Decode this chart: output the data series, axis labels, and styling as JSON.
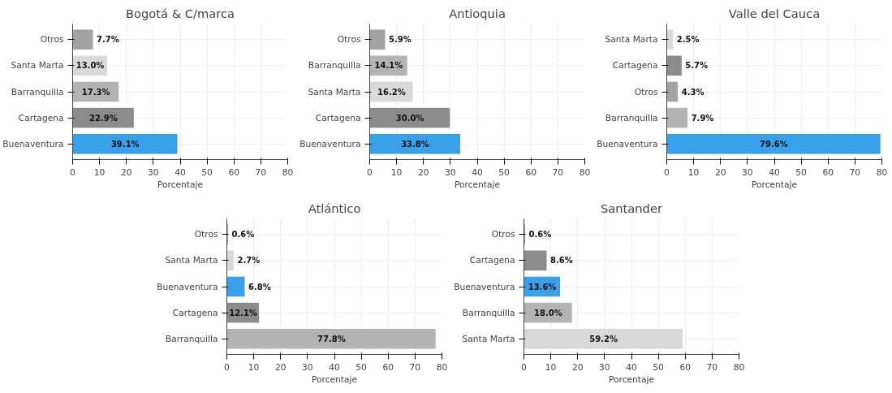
{
  "chart_data": [
    {
      "type": "bar",
      "orientation": "horizontal",
      "title": "Bogotá & C/marca",
      "xlabel": "Porcentaje",
      "categories": [
        "Otros",
        "Santa Marta",
        "Barranquilla",
        "Cartagena",
        "Buenaventura"
      ],
      "values": [
        7.7,
        13.0,
        17.3,
        22.9,
        39.1
      ],
      "value_labels": [
        "7.7%",
        "13.0%",
        "17.3%",
        "22.9%",
        "39.1%"
      ],
      "colors": [
        "#a3a3a3",
        "#d9d9d9",
        "#b3b3b3",
        "#8c8c8c",
        "#3aa0ea"
      ],
      "xlim": [
        0,
        80
      ],
      "xticks": [
        0,
        10,
        20,
        30,
        40,
        50,
        60,
        70,
        80
      ],
      "grid": true
    },
    {
      "type": "bar",
      "orientation": "horizontal",
      "title": "Antioquia",
      "xlabel": "Porcentaje",
      "categories": [
        "Otros",
        "Barranquilla",
        "Santa Marta",
        "Cartagena",
        "Buenaventura"
      ],
      "values": [
        5.9,
        14.1,
        16.2,
        30.0,
        33.8
      ],
      "value_labels": [
        "5.9%",
        "14.1%",
        "16.2%",
        "30.0%",
        "33.8%"
      ],
      "colors": [
        "#a3a3a3",
        "#b3b3b3",
        "#d9d9d9",
        "#8c8c8c",
        "#3aa0ea"
      ],
      "xlim": [
        0,
        80
      ],
      "xticks": [
        0,
        10,
        20,
        30,
        40,
        50,
        60,
        70,
        80
      ],
      "grid": true
    },
    {
      "type": "bar",
      "orientation": "horizontal",
      "title": "Valle del Cauca",
      "xlabel": "Porcentaje",
      "categories": [
        "Santa Marta",
        "Cartagena",
        "Otros",
        "Barranquilla",
        "Buenaventura"
      ],
      "values": [
        2.5,
        5.7,
        4.3,
        7.9,
        79.6
      ],
      "value_labels": [
        "2.5%",
        "5.7%",
        "4.3%",
        "7.9%",
        "79.6%"
      ],
      "colors": [
        "#d9d9d9",
        "#8c8c8c",
        "#a3a3a3",
        "#b3b3b3",
        "#3aa0ea"
      ],
      "xlim": [
        0,
        80
      ],
      "xticks": [
        0,
        10,
        20,
        30,
        40,
        50,
        60,
        70,
        80
      ],
      "grid": true
    },
    {
      "type": "bar",
      "orientation": "horizontal",
      "title": "Atlántico",
      "xlabel": "Porcentaje",
      "categories": [
        "Otros",
        "Santa Marta",
        "Buenaventura",
        "Cartagena",
        "Barranquilla"
      ],
      "values": [
        0.6,
        2.7,
        6.8,
        12.1,
        77.8
      ],
      "value_labels": [
        "0.6%",
        "2.7%",
        "6.8%",
        "12.1%",
        "77.8%"
      ],
      "colors": [
        "#a3a3a3",
        "#d9d9d9",
        "#3aa0ea",
        "#8c8c8c",
        "#b3b3b3"
      ],
      "xlim": [
        0,
        80
      ],
      "xticks": [
        0,
        10,
        20,
        30,
        40,
        50,
        60,
        70,
        80
      ],
      "grid": true
    },
    {
      "type": "bar",
      "orientation": "horizontal",
      "title": "Santander",
      "xlabel": "Porcentaje",
      "categories": [
        "Otros",
        "Cartagena",
        "Buenaventura",
        "Barranquilla",
        "Santa Marta"
      ],
      "values": [
        0.6,
        8.6,
        13.6,
        18.0,
        59.2
      ],
      "value_labels": [
        "0.6%",
        "8.6%",
        "13.6%",
        "18.0%",
        "59.2%"
      ],
      "colors": [
        "#a3a3a3",
        "#8c8c8c",
        "#3aa0ea",
        "#b3b3b3",
        "#d9d9d9"
      ],
      "xlim": [
        0,
        80
      ],
      "xticks": [
        0,
        10,
        20,
        30,
        40,
        50,
        60,
        70,
        80
      ],
      "grid": true
    }
  ]
}
